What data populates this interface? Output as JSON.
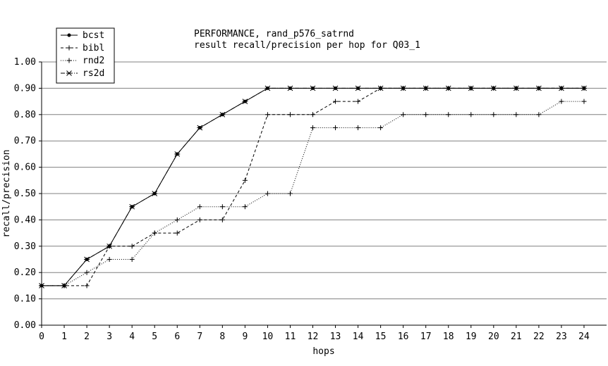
{
  "chart_data": {
    "type": "line",
    "title": "PERFORMANCE, rand_p576_satrnd",
    "subtitle": "result recall/precision per hop for Q03_1",
    "xlabel": "hops",
    "ylabel": "recall/precision",
    "xlim": [
      0,
      24
    ],
    "ylim": [
      0,
      1.0
    ],
    "x_ticks": [
      "0",
      "1",
      "2",
      "3",
      "4",
      "5",
      "6",
      "7",
      "8",
      "9",
      "10",
      "11",
      "12",
      "13",
      "14",
      "15",
      "16",
      "17",
      "18",
      "19",
      "20",
      "21",
      "22",
      "23",
      "24"
    ],
    "y_ticks": [
      "0.00",
      "0.10",
      "0.20",
      "0.30",
      "0.40",
      "0.50",
      "0.60",
      "0.70",
      "0.80",
      "0.90",
      "1.00"
    ],
    "grid": "horizontal",
    "legend_position": "top-left",
    "series": [
      {
        "name": "bcst",
        "marker": "dot",
        "dash": "solid",
        "x": [
          0,
          1,
          2,
          3,
          4,
          5,
          6,
          7,
          8,
          9,
          10,
          11,
          12,
          13,
          14,
          15,
          16,
          17,
          18,
          19,
          20,
          21,
          22,
          23,
          24
        ],
        "values": [
          0.15,
          0.15,
          0.25,
          0.3,
          0.45,
          0.5,
          0.65,
          0.75,
          0.8,
          0.85,
          0.9,
          0.9,
          0.9,
          0.9,
          0.9,
          0.9,
          0.9,
          0.9,
          0.9,
          0.9,
          0.9,
          0.9,
          0.9,
          0.9,
          0.9
        ]
      },
      {
        "name": "bibl",
        "marker": "plus",
        "dash": "dashed",
        "x": [
          0,
          1,
          2,
          3,
          4,
          5,
          6,
          7,
          8,
          9,
          10,
          11,
          12,
          13,
          14,
          15,
          16,
          17,
          18,
          19,
          20,
          21,
          22,
          23,
          24
        ],
        "values": [
          0.15,
          0.15,
          0.15,
          0.3,
          0.3,
          0.35,
          0.35,
          0.4,
          0.4,
          0.55,
          0.8,
          0.8,
          0.8,
          0.85,
          0.85,
          0.9,
          0.9,
          0.9,
          0.9,
          0.9,
          0.9,
          0.9,
          0.9,
          0.9,
          0.9
        ]
      },
      {
        "name": "rnd2",
        "marker": "plus",
        "dash": "dotted",
        "x": [
          0,
          1,
          2,
          3,
          4,
          5,
          6,
          7,
          8,
          9,
          10,
          11,
          12,
          13,
          14,
          15,
          16,
          17,
          18,
          19,
          20,
          21,
          22,
          23,
          24
        ],
        "values": [
          0.15,
          0.15,
          0.2,
          0.25,
          0.25,
          0.35,
          0.4,
          0.45,
          0.45,
          0.45,
          0.5,
          0.5,
          0.75,
          0.75,
          0.75,
          0.75,
          0.8,
          0.8,
          0.8,
          0.8,
          0.8,
          0.8,
          0.8,
          0.85,
          0.85
        ]
      },
      {
        "name": "rs2d",
        "marker": "star",
        "dash": "dashdot",
        "x": [
          0,
          1,
          2,
          3,
          4,
          5,
          6,
          7,
          8,
          9,
          10,
          11,
          12,
          13,
          14,
          15,
          16,
          17,
          18,
          19,
          20,
          21,
          22,
          23,
          24
        ],
        "values": [
          0.15,
          0.15,
          0.25,
          0.3,
          0.45,
          0.5,
          0.65,
          0.75,
          0.8,
          0.85,
          0.9,
          0.9,
          0.9,
          0.9,
          0.9,
          0.9,
          0.9,
          0.9,
          0.9,
          0.9,
          0.9,
          0.9,
          0.9,
          0.9,
          0.9
        ]
      }
    ]
  }
}
